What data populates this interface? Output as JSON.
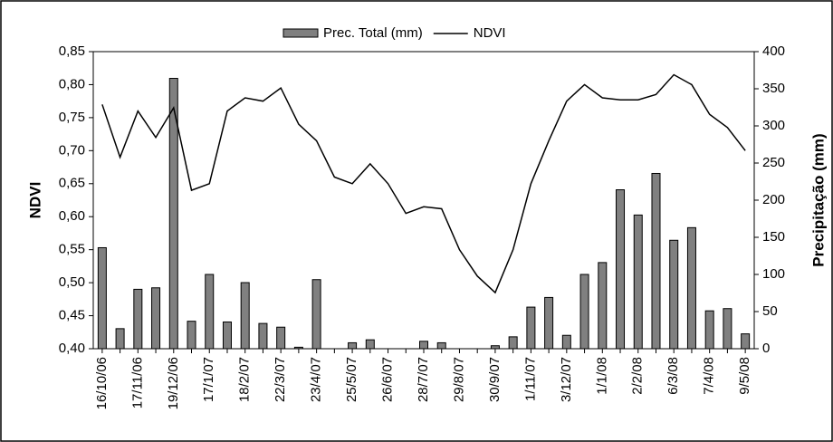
{
  "chart_data": {
    "type": "combo",
    "categories": [
      "16/10/06",
      null,
      "17/11/06",
      null,
      "19/12/06",
      null,
      "17/1/07",
      null,
      "18/2/07",
      null,
      "22/3/07",
      null,
      "23/4/07",
      null,
      "25/5/07",
      null,
      "26/6/07",
      null,
      "28/7/07",
      null,
      "29/8/07",
      null,
      "30/9/07",
      null,
      "1/11/07",
      null,
      "3/12/07",
      null,
      "1/1/08",
      null,
      "2/2/08",
      null,
      "6/3/08",
      null,
      "7/4/08",
      null,
      "9/5/08"
    ],
    "series": [
      {
        "name": "Prec. Total (mm)",
        "type": "bar",
        "axis": "y2",
        "color": "#808080",
        "values": [
          136,
          27,
          80,
          82,
          364,
          37,
          100,
          36,
          89,
          34,
          29,
          2,
          93,
          0,
          8,
          12,
          0,
          0,
          10,
          8,
          0,
          0,
          4,
          16,
          56,
          69,
          18,
          100,
          116,
          214,
          180,
          236,
          146,
          163,
          51,
          54,
          20
        ]
      },
      {
        "name": "NDVI",
        "type": "line",
        "color": "#000000",
        "values": [
          0.77,
          0.69,
          0.76,
          0.72,
          0.765,
          0.64,
          0.65,
          0.76,
          0.78,
          0.775,
          0.795,
          0.74,
          0.715,
          0.66,
          0.65,
          0.68,
          0.65,
          0.605,
          0.615,
          0.612,
          0.55,
          0.51,
          0.485,
          0.55,
          0.65,
          0.715,
          0.775,
          0.8,
          0.78,
          0.777,
          0.777,
          0.785,
          0.815,
          0.8,
          0.755,
          0.735,
          0.7
        ]
      }
    ],
    "y_label": "NDVI",
    "y2_label": "Precipitação (mm)",
    "ylim": [
      0.4,
      0.85
    ],
    "yticks": [
      {
        "value": 0.4,
        "label": "0,40"
      },
      {
        "value": 0.45,
        "label": "0,45"
      },
      {
        "value": 0.5,
        "label": "0,50"
      },
      {
        "value": 0.55,
        "label": "0,55"
      },
      {
        "value": 0.6,
        "label": "0,60"
      },
      {
        "value": 0.65,
        "label": "0,65"
      },
      {
        "value": 0.7,
        "label": "0,70"
      },
      {
        "value": 0.75,
        "label": "0,75"
      },
      {
        "value": 0.8,
        "label": "0,80"
      },
      {
        "value": 0.85,
        "label": "0,85"
      }
    ],
    "y2lim": [
      0,
      400
    ],
    "y2ticks": [
      0,
      50,
      100,
      150,
      200,
      250,
      300,
      350,
      400
    ],
    "legend": "top",
    "grid": false
  }
}
